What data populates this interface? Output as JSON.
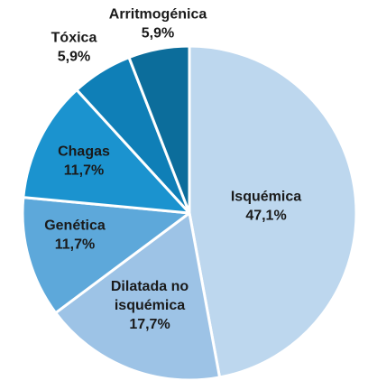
{
  "chart_data": {
    "type": "pie",
    "title": "",
    "start_angle_deg": 0,
    "direction": "clockwise",
    "slices": [
      {
        "name": "Isquémica",
        "value": 47.1,
        "label_lines": [
          "Isquémica",
          "47,1%"
        ],
        "color": "#BDD7EE"
      },
      {
        "name": "Dilatada no isquémica",
        "value": 17.7,
        "label_lines": [
          "Dilatada no",
          "isquémica",
          "17,7%"
        ],
        "color": "#9DC3E6"
      },
      {
        "name": "Genética",
        "value": 11.7,
        "label_lines": [
          "Genética",
          "11,7%"
        ],
        "color": "#5DA8DA"
      },
      {
        "name": "Chagas",
        "value": 11.7,
        "label_lines": [
          "Chagas",
          "11,7%"
        ],
        "color": "#1B93CF"
      },
      {
        "name": "Tóxica",
        "value": 5.9,
        "label_lines": [
          "Tóxica",
          "5,9%"
        ],
        "color": "#0F7FB7"
      },
      {
        "name": "Arritmogénica",
        "value": 5.9,
        "label_lines": [
          "Arritmogénica",
          "5,9%"
        ],
        "color": "#0C6D9B"
      }
    ]
  }
}
